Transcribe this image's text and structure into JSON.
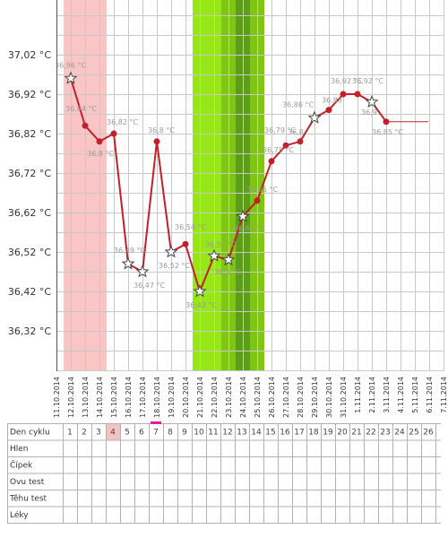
{
  "chart_data": {
    "type": "line",
    "unit": "°C",
    "y_ticks": [
      "37,02 °C",
      "36,92 °C",
      "36,82 °C",
      "36,72 °C",
      "36,62 °C",
      "36,52 °C",
      "36,42 °C",
      "36,32 °C"
    ],
    "y_tick_values": [
      37.02,
      36.92,
      36.82,
      36.72,
      36.62,
      36.52,
      36.42,
      36.32
    ],
    "ylim": [
      36.2,
      37.15
    ],
    "x_dates": [
      "11.10.2014",
      "12.10.2014",
      "13.10.2014",
      "14.10.2014",
      "15.10.2014",
      "16.10.2014",
      "17.10.2014",
      "18.10.2014",
      "19.10.2014",
      "20.10.2014",
      "21.10.2014",
      "22.10.2014",
      "23.10.2014",
      "24.10.2014",
      "25.10.2014",
      "26.10.2014",
      "27.10.2014",
      "28.10.2014",
      "29.10.2014",
      "30.10.2014",
      "31.10.2014",
      "1.11.2014",
      "2.11.2014",
      "3.11.2014",
      "4.11.2014",
      "5.11.2014",
      "6.11.2014",
      "7.11.2014"
    ],
    "series": [
      {
        "color": "#c0202a",
        "points": [
          {
            "date_index": 1,
            "value": 36.96,
            "label": "36,96 °C",
            "star": true
          },
          {
            "date_index": 2,
            "value": 36.84,
            "label": "36,84 °C",
            "star": false
          },
          {
            "date_index": 3,
            "value": 36.8,
            "label": "36,8 °C",
            "star": false
          },
          {
            "date_index": 4,
            "value": 36.82,
            "label": "36,82 °C",
            "star": false
          },
          {
            "date_index": 5,
            "value": 36.49,
            "label": "36,49 °C",
            "star": true
          },
          {
            "date_index": 6,
            "value": 36.47,
            "label": "36,47 °C",
            "star": true
          },
          {
            "date_index": 7,
            "value": 36.8,
            "label": "36,8 °C",
            "star": false
          },
          {
            "date_index": 8,
            "value": 36.52,
            "label": "36,52 °C",
            "star": true
          },
          {
            "date_index": 9,
            "value": 36.54,
            "label": "36,54 °C",
            "star": false
          },
          {
            "date_index": 10,
            "value": 36.42,
            "label": "36,42 °C",
            "star": true
          },
          {
            "date_index": 11,
            "value": 36.51,
            "label": "36,51 °C",
            "star": true
          },
          {
            "date_index": 12,
            "value": 36.5,
            "label": "36,5 °C",
            "star": true
          },
          {
            "date_index": 13,
            "value": 36.61,
            "label": "36,61 °C",
            "star": true
          },
          {
            "date_index": 14,
            "value": 36.65,
            "label": "36,65 °C",
            "star": false
          },
          {
            "date_index": 15,
            "value": 36.75,
            "label": "36,75 °C",
            "star": false
          },
          {
            "date_index": 16,
            "value": 36.79,
            "label": "36,79 °C",
            "star": false
          },
          {
            "date_index": 17,
            "value": 36.8,
            "label": "36,8",
            "star": false
          },
          {
            "date_index": 18,
            "value": 36.86,
            "label": "36,86 °C",
            "star": true
          },
          {
            "date_index": 19,
            "value": 36.88,
            "label": "36,88",
            "star": false
          },
          {
            "date_index": 20,
            "value": 36.92,
            "label": "36,92 °C",
            "star": false
          },
          {
            "date_index": 21,
            "value": 36.92,
            "label": "36,92 °C",
            "star": false
          },
          {
            "date_index": 22,
            "value": 36.9,
            "label": "36,9",
            "star": true
          },
          {
            "date_index": 23,
            "value": 36.85,
            "label": "36,85 °C",
            "star": false
          }
        ]
      }
    ],
    "tail_value": 36.85,
    "menstruation_dates": [
      1,
      3
    ],
    "fertile_dates": [
      10,
      14
    ],
    "peak_date": 13,
    "grid": true
  },
  "table": {
    "row_labels": [
      "Den cyklu",
      "Hlen",
      "Čípek",
      "Ovu test",
      "Těhu test",
      "Léky"
    ],
    "cycle_days": [
      "1",
      "2",
      "3",
      "4",
      "5",
      "6",
      "7",
      "8",
      "9",
      "10",
      "11",
      "12",
      "13",
      "14",
      "15",
      "16",
      "17",
      "18",
      "19",
      "20",
      "21",
      "22",
      "23",
      "24",
      "25",
      "26"
    ],
    "highlight_day": "4",
    "highlight_color": "#f4c4c4",
    "marker_day": "7",
    "marker_color": "#e020a0"
  },
  "colors": {
    "menstruation": "#f9c5c5",
    "fertile": "#96e61a",
    "fertile_dark": "#7fc515",
    "peak": "#5a9e1a",
    "line": "#c0202a"
  }
}
